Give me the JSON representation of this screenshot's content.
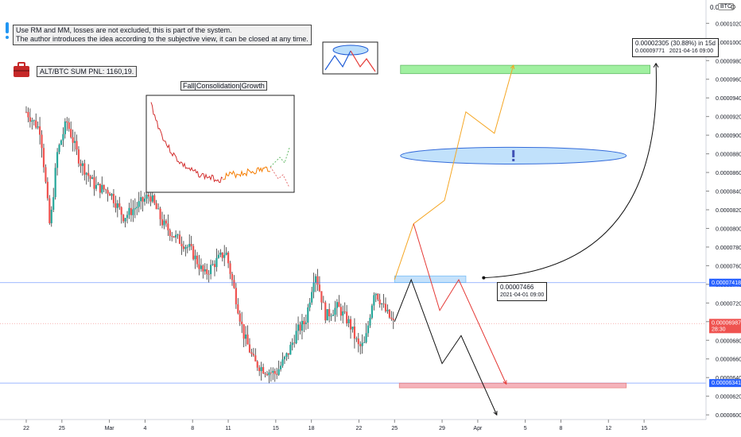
{
  "header": {
    "currency_prefix": "0.0",
    "currency_badge": "BTC",
    "settings_icon": "gear-icon"
  },
  "notes": {
    "line1": "Use RM and MM, losses are not excluded, this is part of the system.",
    "line2": "The author introduces the idea according to the subjective view, it can be closed at any time.",
    "pnl_icon": "briefcase-icon",
    "pnl_label": "ALT/BTC SUM PNL: 1160,19.",
    "inset_title": "Fall|Consolidation|Growth"
  },
  "callouts": {
    "measure_line1": "0.00002305 (30.88%) in 15d",
    "measure_price": "0.00009771",
    "measure_date": "2021-04-16  09:00",
    "entry_price": "0.00007466",
    "entry_date": "2021-04-01 09:00"
  },
  "price_labels": [
    {
      "value": "0.00007418",
      "bg": "#2962ff"
    },
    {
      "value": "0.00006987",
      "time": "28:30",
      "bg": "#ef5350"
    },
    {
      "value": "0.00006341",
      "bg": "#2962ff"
    }
  ],
  "colors": {
    "up": "#26a69a",
    "down": "#ef5350",
    "wick": "#333333",
    "level_line": "#2962ff",
    "target_zone": "#90ee90",
    "stop_zone": "#f4a6b0",
    "entry_zone": "#bbdefb",
    "ellipse": "#1e5bd6",
    "bull_path": "#f5a623",
    "bear_path": "#e53935",
    "base_path": "#111111"
  },
  "chart_data": {
    "type": "candlestick",
    "y_axis": {
      "min": 5.95e-05,
      "max": 0.0001045,
      "tick_values": [
        6e-05,
        6.2e-05,
        6.4e-05,
        6.6e-05,
        6.8e-05,
        7e-05,
        7.2e-05,
        7.4e-05,
        7.6e-05,
        7.8e-05,
        8e-05,
        8.2e-05,
        8.4e-05,
        8.6e-05,
        8.8e-05,
        9e-05,
        9.2e-05,
        9.4e-05,
        9.6e-05,
        9.8e-05,
        0.0001,
        0.000102
      ],
      "tick_labels": [
        "0.00006000",
        "0.00006200",
        "0.00006400",
        "0.00006600",
        "0.00006800",
        "0.00007000",
        "0.00007200",
        "0.00007400",
        "0.00007600",
        "0.00007800",
        "0.00008000",
        "0.00008200",
        "0.00008400",
        "0.00008600",
        "0.00008800",
        "0.00009000",
        "0.00009200",
        "0.00009400",
        "0.00009600",
        "0.00009800",
        "0.00010000",
        "0.00010200"
      ],
      "position": "right"
    },
    "x_axis": {
      "min_day": 0,
      "max_day": 54,
      "ticks": [
        {
          "day": 0,
          "label": "22"
        },
        {
          "day": 3,
          "label": "25"
        },
        {
          "day": 7,
          "label": "Mar"
        },
        {
          "day": 10,
          "label": "4"
        },
        {
          "day": 14,
          "label": "8"
        },
        {
          "day": 17,
          "label": "11"
        },
        {
          "day": 21,
          "label": "15"
        },
        {
          "day": 24,
          "label": "18"
        },
        {
          "day": 28,
          "label": "22"
        },
        {
          "day": 31,
          "label": "25"
        },
        {
          "day": 35,
          "label": "29"
        },
        {
          "day": 38,
          "label": "Apr"
        },
        {
          "day": 42,
          "label": "5"
        },
        {
          "day": 45,
          "label": "8"
        },
        {
          "day": 49,
          "label": "12"
        },
        {
          "day": 52,
          "label": "15"
        }
      ]
    },
    "price_series": [
      {
        "day": 0.0,
        "price": 9.25e-05
      },
      {
        "day": 1.2,
        "price": 9.05e-05
      },
      {
        "day": 2.0,
        "price": 8e-05
      },
      {
        "day": 2.6,
        "price": 8.8e-05
      },
      {
        "day": 3.4,
        "price": 9.15e-05
      },
      {
        "day": 4.5,
        "price": 8.72e-05
      },
      {
        "day": 5.8,
        "price": 8.45e-05
      },
      {
        "day": 7.0,
        "price": 8.4e-05
      },
      {
        "day": 8.2,
        "price": 8.12e-05
      },
      {
        "day": 9.5,
        "price": 8.26e-05
      },
      {
        "day": 10.4,
        "price": 8.36e-05
      },
      {
        "day": 11.5,
        "price": 8.05e-05
      },
      {
        "day": 12.6,
        "price": 7.9e-05
      },
      {
        "day": 13.8,
        "price": 7.78e-05
      },
      {
        "day": 15.0,
        "price": 7.5e-05
      },
      {
        "day": 16.0,
        "price": 7.65e-05
      },
      {
        "day": 16.8,
        "price": 7.75e-05
      },
      {
        "day": 17.6,
        "price": 7.28e-05
      },
      {
        "day": 18.3,
        "price": 6.86e-05
      },
      {
        "day": 19.2,
        "price": 6.56e-05
      },
      {
        "day": 20.1,
        "price": 6.48e-05
      },
      {
        "day": 21.0,
        "price": 6.44e-05
      },
      {
        "day": 22.0,
        "price": 6.65e-05
      },
      {
        "day": 22.8,
        "price": 6.9e-05
      },
      {
        "day": 23.5,
        "price": 7e-05
      },
      {
        "day": 24.3,
        "price": 7.55e-05
      },
      {
        "day": 25.2,
        "price": 7.06e-05
      },
      {
        "day": 26.2,
        "price": 7.16e-05
      },
      {
        "day": 27.2,
        "price": 6.98e-05
      },
      {
        "day": 28.0,
        "price": 6.72e-05
      },
      {
        "day": 28.5,
        "price": 6.76e-05
      },
      {
        "day": 29.3,
        "price": 7.35e-05
      },
      {
        "day": 30.2,
        "price": 7.12e-05
      },
      {
        "day": 30.9,
        "price": 6.98e-05
      }
    ],
    "levels": [
      7.418e-05,
      6.341e-05
    ],
    "zones": [
      {
        "name": "target",
        "day_start": 31.5,
        "day_end": 52.5,
        "low": 9.66e-05,
        "high": 9.75e-05
      },
      {
        "name": "entry",
        "day_start": 31.0,
        "day_end": 37.0,
        "low": 7.42e-05,
        "high": 7.49e-05
      },
      {
        "name": "stop",
        "day_start": 31.4,
        "day_end": 50.5,
        "low": 6.29e-05,
        "high": 6.34e-05
      }
    ],
    "ellipse": {
      "day_center": 41.0,
      "price_center": 8.78e-05,
      "day_halfwidth": 9.5,
      "price_halfheight": 9e-07
    },
    "paths": {
      "bull": [
        [
          31.0,
          7.45e-05
        ],
        [
          32.6,
          8.05e-05
        ],
        [
          35.2,
          8.3e-05
        ],
        [
          37.0,
          9.25e-05
        ],
        [
          39.4,
          9.02e-05
        ],
        [
          41.0,
          9.75e-05
        ]
      ],
      "bear": [
        [
          32.6,
          8.05e-05
        ],
        [
          34.8,
          7.12e-05
        ],
        [
          36.4,
          7.45e-05
        ],
        [
          40.4,
          6.33e-05
        ]
      ],
      "base": [
        [
          31.0,
          7e-05
        ],
        [
          32.4,
          7.45e-05
        ],
        [
          35.0,
          6.55e-05
        ],
        [
          36.6,
          6.85e-05
        ],
        [
          39.6,
          6e-05
        ]
      ]
    },
    "measure_arc": {
      "from": [
        38.5,
        7.47e-05
      ],
      "to": [
        53.0,
        9.77e-05
      ]
    }
  }
}
